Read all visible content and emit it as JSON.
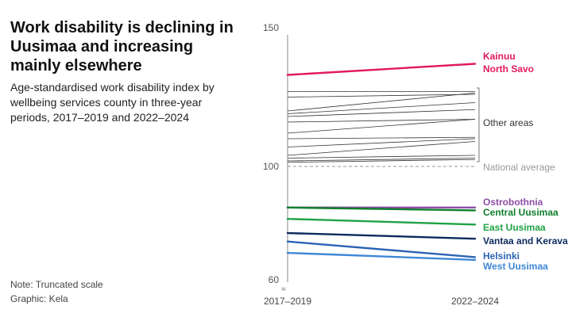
{
  "header": {
    "title": "Work disability is declining in Uusimaa and increasing mainly elsewhere",
    "subtitle": "Age-standardised work disability index by wellbeing services county in three-year periods, 2017–2019 and 2022–2024"
  },
  "footer": {
    "note": "Note: Truncated scale",
    "source": "Graphic: Kela"
  },
  "chart_data": {
    "type": "line",
    "title": "Work disability is declining in Uusimaa and increasing mainly elsewhere",
    "subtitle": "Age-standardised work disability index by wellbeing services county in three-year periods, 2017–2019 and 2022–2024",
    "x": [
      "2017–2019",
      "2022–2024"
    ],
    "ylim": [
      60,
      150
    ],
    "y_ticks": [
      60,
      100,
      150
    ],
    "truncated_axis": true,
    "grid": false,
    "national_average": {
      "label": "National average",
      "value": 100,
      "style": "dashed",
      "color": "#999999"
    },
    "highlighted_series": [
      {
        "name": "Kainuu",
        "values": [
          133,
          137
        ],
        "color": "#e2195b"
      },
      {
        "name": "North Savo",
        "values": [
          133,
          137
        ],
        "color": "#e2195b"
      },
      {
        "name": "Ostrobothnia",
        "values": [
          85.5,
          85.5
        ],
        "color": "#8e4ea6"
      },
      {
        "name": "Central Uusimaa",
        "values": [
          85.5,
          84.5
        ],
        "color": "#0e7f2c"
      },
      {
        "name": "East Uusimaa",
        "values": [
          81.5,
          79.5
        ],
        "color": "#1fa244"
      },
      {
        "name": "Vantaa and Kerava",
        "values": [
          76.5,
          74.5
        ],
        "color": "#0c2a5e"
      },
      {
        "name": "Helsinki",
        "values": [
          73.5,
          68
        ],
        "color": "#2c63b5"
      },
      {
        "name": "West Uusimaa",
        "values": [
          69.5,
          67
        ],
        "color": "#3f87d6"
      }
    ],
    "other_areas": {
      "label": "Other areas",
      "color": "#333333",
      "series": [
        [
          127,
          127
        ],
        [
          125,
          126
        ],
        [
          120,
          126.5
        ],
        [
          119,
          123
        ],
        [
          118,
          120.5
        ],
        [
          116,
          117
        ],
        [
          112,
          117
        ],
        [
          110,
          110.5
        ],
        [
          107,
          110
        ],
        [
          104,
          109
        ],
        [
          103,
          104
        ],
        [
          102,
          103
        ],
        [
          101.5,
          102.5
        ]
      ]
    },
    "labels": {
      "kainuu": "Kainuu",
      "north_savo": "North Savo",
      "other_areas": "Other areas",
      "national_average": "National average",
      "ostrobothnia": "Ostrobothnia",
      "central_uusimaa": "Central Uusimaa",
      "east_uusimaa": "East Uusimaa",
      "vantaa_kerava": "Vantaa and Kerava",
      "helsinki": "Helsinki",
      "west_uusimaa": "West Uusimaa"
    }
  }
}
